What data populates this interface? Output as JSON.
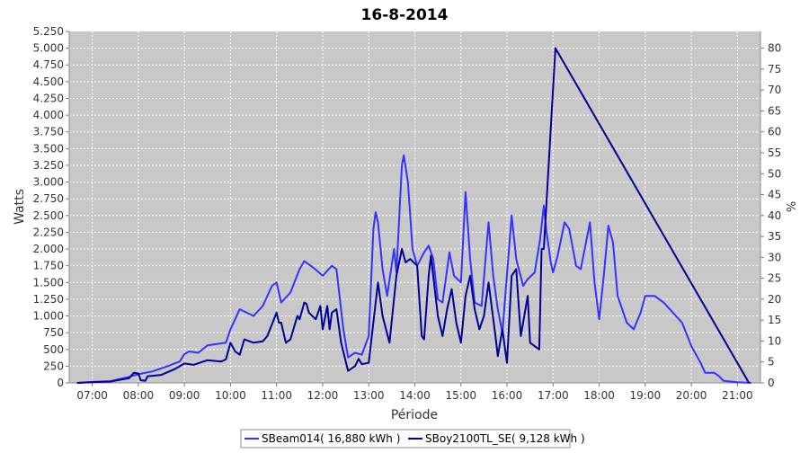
{
  "chart_data": {
    "type": "line",
    "title": "16-8-2014",
    "xlabel": "Période",
    "ylabel": "Watts",
    "y2label": "%",
    "x_tick_labels": [
      "07:00",
      "08:00",
      "09:00",
      "10:00",
      "11:00",
      "12:00",
      "13:00",
      "14:00",
      "15:00",
      "16:00",
      "17:00",
      "18:00",
      "19:00",
      "20:00",
      "21:00"
    ],
    "x_tick_hours": [
      7,
      8,
      9,
      10,
      11,
      12,
      13,
      14,
      15,
      16,
      17,
      18,
      19,
      20,
      21
    ],
    "xlim": [
      6.5,
      21.5
    ],
    "ylim": [
      0,
      5250
    ],
    "y_ticks": [
      0,
      250,
      500,
      750,
      1000,
      1250,
      1500,
      1750,
      2000,
      2250,
      2500,
      2750,
      3000,
      3250,
      3500,
      3750,
      4000,
      4250,
      4500,
      4750,
      5000,
      5250
    ],
    "y_tick_labels": [
      "0",
      "250",
      "500",
      "750",
      "1.000",
      "1.250",
      "1.500",
      "1.750",
      "2.000",
      "2.250",
      "2.500",
      "2.750",
      "3.000",
      "3.250",
      "3.500",
      "3.750",
      "4.000",
      "4.250",
      "4.500",
      "4.750",
      "5.000",
      "5.250"
    ],
    "y2lim": [
      0,
      84
    ],
    "y2_ticks": [
      0,
      5,
      10,
      15,
      20,
      25,
      30,
      35,
      40,
      45,
      50,
      55,
      60,
      65,
      70,
      75,
      80
    ],
    "y2_tick_labels": [
      "0",
      "5",
      "10",
      "15",
      "20",
      "25",
      "30",
      "35",
      "40",
      "45",
      "50",
      "55",
      "60",
      "65",
      "70",
      "75",
      "80"
    ],
    "grid": true,
    "legend_position": "bottom",
    "plot_background": "#c8c8c8",
    "series": [
      {
        "name": "SBeam014( 16,880 kWh )",
        "color": "#3333ff",
        "axis": "left",
        "points": [
          [
            6.67,
            0
          ],
          [
            7.0,
            15
          ],
          [
            7.4,
            25
          ],
          [
            7.8,
            90
          ],
          [
            8.0,
            130
          ],
          [
            8.3,
            170
          ],
          [
            8.6,
            240
          ],
          [
            8.9,
            320
          ],
          [
            9.0,
            430
          ],
          [
            9.1,
            470
          ],
          [
            9.3,
            450
          ],
          [
            9.5,
            560
          ],
          [
            9.7,
            580
          ],
          [
            9.9,
            600
          ],
          [
            10.0,
            800
          ],
          [
            10.2,
            1100
          ],
          [
            10.5,
            1000
          ],
          [
            10.7,
            1150
          ],
          [
            10.9,
            1450
          ],
          [
            11.0,
            1500
          ],
          [
            11.1,
            1200
          ],
          [
            11.3,
            1350
          ],
          [
            11.5,
            1700
          ],
          [
            11.6,
            1820
          ],
          [
            11.8,
            1720
          ],
          [
            12.0,
            1600
          ],
          [
            12.2,
            1750
          ],
          [
            12.3,
            1700
          ],
          [
            12.45,
            800
          ],
          [
            12.55,
            380
          ],
          [
            12.7,
            450
          ],
          [
            12.85,
            420
          ],
          [
            13.0,
            700
          ],
          [
            13.1,
            2300
          ],
          [
            13.15,
            2550
          ],
          [
            13.2,
            2400
          ],
          [
            13.3,
            1700
          ],
          [
            13.4,
            1300
          ],
          [
            13.55,
            2000
          ],
          [
            13.6,
            1650
          ],
          [
            13.72,
            3250
          ],
          [
            13.76,
            3400
          ],
          [
            13.85,
            3000
          ],
          [
            13.95,
            2000
          ],
          [
            14.05,
            1750
          ],
          [
            14.2,
            1950
          ],
          [
            14.3,
            2050
          ],
          [
            14.4,
            1850
          ],
          [
            14.5,
            1250
          ],
          [
            14.6,
            1200
          ],
          [
            14.75,
            1950
          ],
          [
            14.85,
            1600
          ],
          [
            15.0,
            1500
          ],
          [
            15.1,
            2850
          ],
          [
            15.2,
            1850
          ],
          [
            15.3,
            1200
          ],
          [
            15.45,
            1150
          ],
          [
            15.6,
            2400
          ],
          [
            15.7,
            1600
          ],
          [
            15.8,
            1100
          ],
          [
            15.9,
            750
          ],
          [
            16.1,
            2500
          ],
          [
            16.2,
            1850
          ],
          [
            16.35,
            1450
          ],
          [
            16.45,
            1550
          ],
          [
            16.6,
            1650
          ],
          [
            16.72,
            2150
          ],
          [
            16.8,
            2650
          ],
          [
            16.85,
            2300
          ],
          [
            16.95,
            1800
          ],
          [
            17.0,
            1650
          ],
          [
            17.1,
            1900
          ],
          [
            17.25,
            2400
          ],
          [
            17.35,
            2300
          ],
          [
            17.5,
            1750
          ],
          [
            17.6,
            1700
          ],
          [
            17.8,
            2400
          ],
          [
            17.9,
            1500
          ],
          [
            18.0,
            950
          ],
          [
            18.1,
            1600
          ],
          [
            18.2,
            2350
          ],
          [
            18.3,
            2100
          ],
          [
            18.4,
            1300
          ],
          [
            18.6,
            900
          ],
          [
            18.75,
            800
          ],
          [
            18.9,
            1050
          ],
          [
            19.0,
            1300
          ],
          [
            19.2,
            1300
          ],
          [
            19.4,
            1200
          ],
          [
            19.6,
            1050
          ],
          [
            19.8,
            900
          ],
          [
            20.0,
            550
          ],
          [
            20.2,
            300
          ],
          [
            20.3,
            150
          ],
          [
            20.5,
            150
          ],
          [
            20.6,
            100
          ],
          [
            20.7,
            30
          ],
          [
            21.0,
            10
          ],
          [
            21.3,
            0
          ]
        ]
      },
      {
        "name": "SBoy2100TL_SE( 9,128 kWh )",
        "color": "#000099",
        "axis": "left",
        "points": [
          [
            6.67,
            0
          ],
          [
            7.0,
            10
          ],
          [
            7.4,
            20
          ],
          [
            7.8,
            70
          ],
          [
            7.9,
            150
          ],
          [
            8.0,
            140
          ],
          [
            8.05,
            40
          ],
          [
            8.15,
            30
          ],
          [
            8.2,
            100
          ],
          [
            8.5,
            120
          ],
          [
            8.8,
            210
          ],
          [
            9.0,
            290
          ],
          [
            9.2,
            270
          ],
          [
            9.5,
            340
          ],
          [
            9.8,
            320
          ],
          [
            9.9,
            350
          ],
          [
            10.0,
            600
          ],
          [
            10.1,
            470
          ],
          [
            10.2,
            420
          ],
          [
            10.3,
            650
          ],
          [
            10.5,
            600
          ],
          [
            10.7,
            620
          ],
          [
            10.8,
            700
          ],
          [
            11.0,
            1050
          ],
          [
            11.05,
            900
          ],
          [
            11.1,
            900
          ],
          [
            11.2,
            600
          ],
          [
            11.3,
            650
          ],
          [
            11.45,
            1000
          ],
          [
            11.5,
            950
          ],
          [
            11.6,
            1200
          ],
          [
            11.65,
            1180
          ],
          [
            11.7,
            1050
          ],
          [
            11.85,
            950
          ],
          [
            11.95,
            1150
          ],
          [
            12.0,
            800
          ],
          [
            12.1,
            1150
          ],
          [
            12.15,
            800
          ],
          [
            12.2,
            1050
          ],
          [
            12.3,
            1100
          ],
          [
            12.4,
            600
          ],
          [
            12.55,
            180
          ],
          [
            12.7,
            250
          ],
          [
            12.78,
            360
          ],
          [
            12.85,
            280
          ],
          [
            13.0,
            300
          ],
          [
            13.2,
            1500
          ],
          [
            13.3,
            1000
          ],
          [
            13.45,
            600
          ],
          [
            13.6,
            1600
          ],
          [
            13.72,
            2000
          ],
          [
            13.8,
            1800
          ],
          [
            13.9,
            1850
          ],
          [
            14.05,
            1750
          ],
          [
            14.15,
            700
          ],
          [
            14.2,
            650
          ],
          [
            14.3,
            1600
          ],
          [
            14.35,
            1900
          ],
          [
            14.5,
            1000
          ],
          [
            14.6,
            700
          ],
          [
            14.7,
            1100
          ],
          [
            14.8,
            1400
          ],
          [
            14.9,
            900
          ],
          [
            15.0,
            600
          ],
          [
            15.1,
            1300
          ],
          [
            15.2,
            1600
          ],
          [
            15.3,
            1100
          ],
          [
            15.4,
            800
          ],
          [
            15.5,
            1000
          ],
          [
            15.6,
            1500
          ],
          [
            15.75,
            700
          ],
          [
            15.8,
            400
          ],
          [
            15.9,
            800
          ],
          [
            16.0,
            300
          ],
          [
            16.1,
            1600
          ],
          [
            16.2,
            1700
          ],
          [
            16.3,
            700
          ],
          [
            16.45,
            1300
          ],
          [
            16.5,
            600
          ],
          [
            16.7,
            500
          ],
          [
            16.75,
            2000
          ],
          [
            16.8,
            2000
          ],
          [
            17.0,
            4400
          ],
          [
            17.05,
            5000
          ],
          [
            21.25,
            0
          ]
        ]
      }
    ]
  }
}
